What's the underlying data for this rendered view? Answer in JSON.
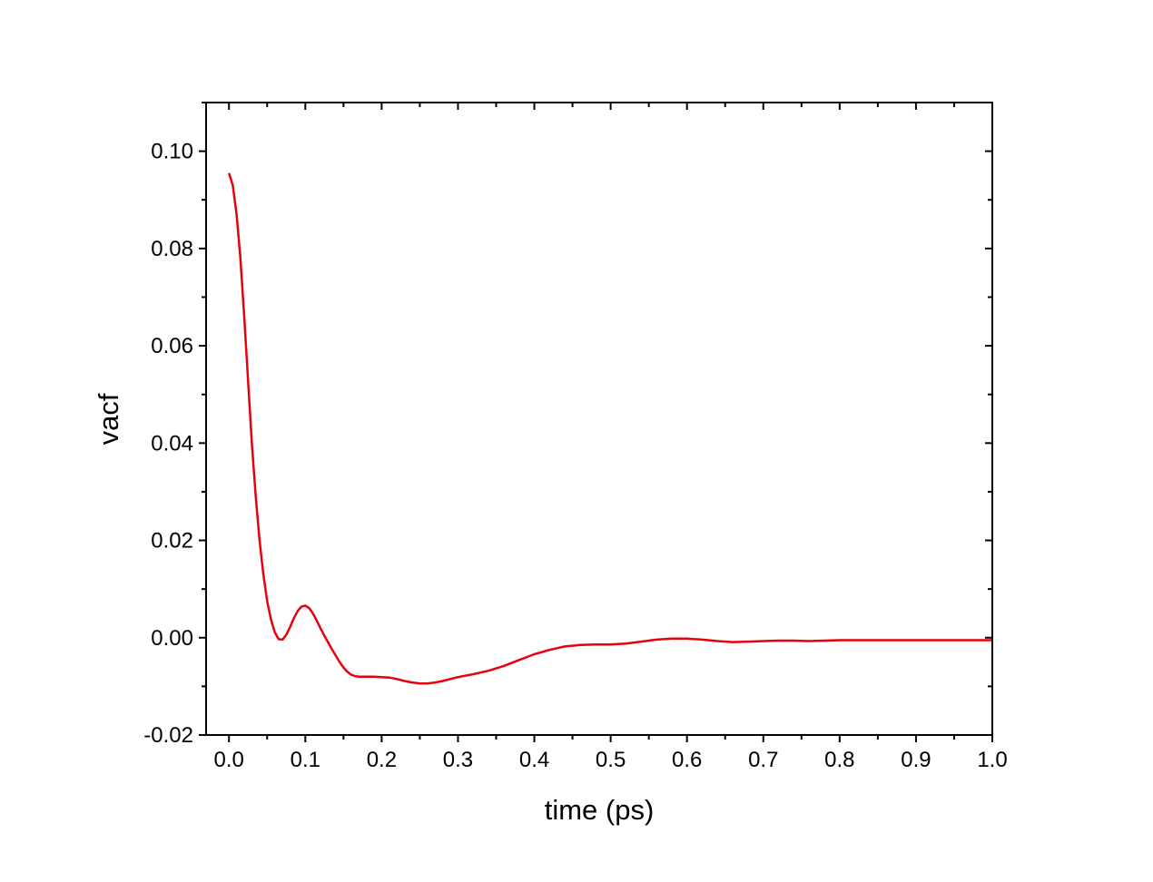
{
  "chart_data": {
    "type": "line",
    "title": "",
    "xlabel": "time (ps)",
    "ylabel": "vacf",
    "xlim": [
      -0.03,
      1.0
    ],
    "ylim": [
      -0.02,
      0.11
    ],
    "x_ticks": [
      0.0,
      0.1,
      0.2,
      0.3,
      0.4,
      0.5,
      0.6,
      0.7,
      0.8,
      0.9,
      1.0
    ],
    "x_tick_labels": [
      "0.0",
      "0.1",
      "0.2",
      "0.3",
      "0.4",
      "0.5",
      "0.6",
      "0.7",
      "0.8",
      "0.9",
      "1.0"
    ],
    "y_ticks": [
      -0.02,
      0.0,
      0.02,
      0.04,
      0.06,
      0.08,
      0.1
    ],
    "y_tick_labels": [
      "-0.02",
      "0.00",
      "0.02",
      "0.04",
      "0.06",
      "0.08",
      "0.10"
    ],
    "grid": false,
    "series": [
      {
        "color": "#e8000b",
        "x": [
          0.0,
          0.005,
          0.01,
          0.015,
          0.02,
          0.025,
          0.03,
          0.035,
          0.04,
          0.045,
          0.05,
          0.055,
          0.06,
          0.065,
          0.07,
          0.075,
          0.08,
          0.085,
          0.09,
          0.095,
          0.1,
          0.105,
          0.11,
          0.115,
          0.12,
          0.125,
          0.13,
          0.135,
          0.14,
          0.145,
          0.15,
          0.155,
          0.16,
          0.165,
          0.17,
          0.175,
          0.18,
          0.19,
          0.2,
          0.21,
          0.22,
          0.23,
          0.24,
          0.25,
          0.26,
          0.27,
          0.28,
          0.29,
          0.3,
          0.32,
          0.34,
          0.36,
          0.38,
          0.4,
          0.42,
          0.44,
          0.46,
          0.48,
          0.5,
          0.52,
          0.54,
          0.56,
          0.58,
          0.6,
          0.62,
          0.64,
          0.66,
          0.68,
          0.7,
          0.72,
          0.74,
          0.76,
          0.78,
          0.8,
          0.85,
          0.9,
          0.95,
          1.0
        ],
        "y": [
          0.0955,
          0.093,
          0.087,
          0.078,
          0.066,
          0.053,
          0.04,
          0.029,
          0.02,
          0.013,
          0.0075,
          0.0037,
          0.0011,
          -0.0003,
          -0.0004,
          0.0006,
          0.0022,
          0.004,
          0.0055,
          0.0064,
          0.0066,
          0.0061,
          0.005,
          0.0035,
          0.0019,
          0.0004,
          -0.001,
          -0.0024,
          -0.0037,
          -0.005,
          -0.0061,
          -0.007,
          -0.0076,
          -0.0079,
          -0.008,
          -0.008,
          -0.008,
          -0.008,
          -0.0081,
          -0.0082,
          -0.0085,
          -0.0089,
          -0.0092,
          -0.0094,
          -0.0094,
          -0.0092,
          -0.0089,
          -0.0085,
          -0.0081,
          -0.0075,
          -0.0068,
          -0.0058,
          -0.0046,
          -0.0034,
          -0.0025,
          -0.0018,
          -0.0015,
          -0.0014,
          -0.0014,
          -0.0012,
          -0.0008,
          -0.0004,
          -0.0002,
          -0.0002,
          -0.0004,
          -0.0007,
          -0.0009,
          -0.0008,
          -0.0007,
          -0.0006,
          -0.0006,
          -0.0007,
          -0.0006,
          -0.0005,
          -0.0005,
          -0.0005,
          -0.0005,
          -0.0005
        ]
      }
    ]
  }
}
